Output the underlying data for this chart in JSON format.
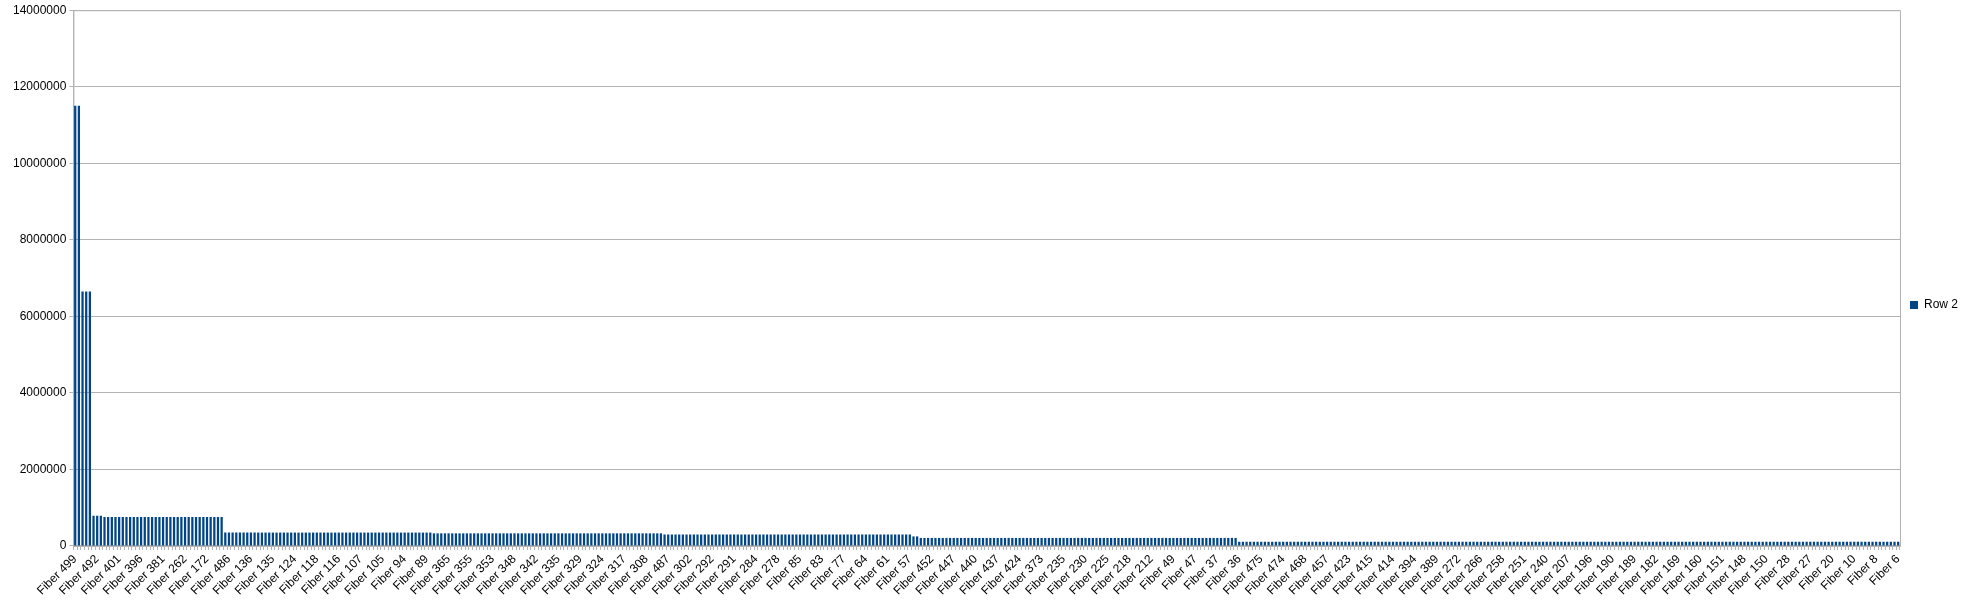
{
  "chart_data": {
    "type": "bar",
    "categories": [
      "Fiber 499",
      null,
      null,
      null,
      null,
      null,
      "Fiber 492",
      null,
      null,
      null,
      null,
      null,
      "Fiber 401",
      null,
      null,
      null,
      null,
      null,
      "Fiber 396",
      null,
      null,
      null,
      null,
      null,
      "Fiber 381",
      null,
      null,
      null,
      null,
      null,
      "Fiber 262",
      null,
      null,
      null,
      null,
      null,
      "Fiber 172",
      null,
      null,
      null,
      null,
      null,
      "Fiber 486",
      null,
      null,
      null,
      null,
      null,
      "Fiber 136",
      null,
      null,
      null,
      null,
      null,
      "Fiber 135",
      null,
      null,
      null,
      null,
      null,
      "Fiber 124",
      null,
      null,
      null,
      null,
      null,
      "Fiber 118",
      null,
      null,
      null,
      null,
      null,
      "Fiber 116",
      null,
      null,
      null,
      null,
      null,
      "Fiber 107",
      null,
      null,
      null,
      null,
      null,
      "Fiber 105",
      null,
      null,
      null,
      null,
      null,
      "Fiber 94",
      null,
      null,
      null,
      null,
      null,
      "Fiber 89",
      null,
      null,
      null,
      null,
      null,
      "Fiber 365",
      null,
      null,
      null,
      null,
      null,
      "Fiber 355",
      null,
      null,
      null,
      null,
      null,
      "Fiber 353",
      null,
      null,
      null,
      null,
      null,
      "Fiber 348",
      null,
      null,
      null,
      null,
      null,
      "Fiber 342",
      null,
      null,
      null,
      null,
      null,
      "Fiber 335",
      null,
      null,
      null,
      null,
      null,
      "Fiber 329",
      null,
      null,
      null,
      null,
      null,
      "Fiber 324",
      null,
      null,
      null,
      null,
      null,
      "Fiber 317",
      null,
      null,
      null,
      null,
      null,
      "Fiber 308",
      null,
      null,
      null,
      null,
      null,
      "Fiber 487",
      null,
      null,
      null,
      null,
      null,
      "Fiber 302",
      null,
      null,
      null,
      null,
      null,
      "Fiber 292",
      null,
      null,
      null,
      null,
      null,
      "Fiber 291",
      null,
      null,
      null,
      null,
      null,
      "Fiber 284",
      null,
      null,
      null,
      null,
      null,
      "Fiber 278",
      null,
      null,
      null,
      null,
      null,
      "Fiber 85",
      null,
      null,
      null,
      null,
      null,
      "Fiber 83",
      null,
      null,
      null,
      null,
      null,
      "Fiber 77",
      null,
      null,
      null,
      null,
      null,
      "Fiber 64",
      null,
      null,
      null,
      null,
      null,
      "Fiber 61",
      null,
      null,
      null,
      null,
      null,
      "Fiber 57",
      null,
      null,
      null,
      null,
      null,
      "Fiber 452",
      null,
      null,
      null,
      null,
      null,
      "Fiber 447",
      null,
      null,
      null,
      null,
      null,
      "Fiber 440",
      null,
      null,
      null,
      null,
      null,
      "Fiber 437",
      null,
      null,
      null,
      null,
      null,
      "Fiber 424",
      null,
      null,
      null,
      null,
      null,
      "Fiber 373",
      null,
      null,
      null,
      null,
      null,
      "Fiber 235",
      null,
      null,
      null,
      null,
      null,
      "Fiber 230",
      null,
      null,
      null,
      null,
      null,
      "Fiber 225",
      null,
      null,
      null,
      null,
      null,
      "Fiber 218",
      null,
      null,
      null,
      null,
      null,
      "Fiber 212",
      null,
      null,
      null,
      null,
      null,
      "Fiber 49",
      null,
      null,
      null,
      null,
      null,
      "Fiber 47",
      null,
      null,
      null,
      null,
      null,
      "Fiber 37",
      null,
      null,
      null,
      null,
      null,
      "Fiber 36",
      null,
      null,
      null,
      null,
      null,
      "Fiber 475",
      null,
      null,
      null,
      null,
      null,
      "Fiber 474",
      null,
      null,
      null,
      null,
      null,
      "Fiber 468",
      null,
      null,
      null,
      null,
      null,
      "Fiber 457",
      null,
      null,
      null,
      null,
      null,
      "Fiber 423",
      null,
      null,
      null,
      null,
      null,
      "Fiber 415",
      null,
      null,
      null,
      null,
      null,
      "Fiber 414",
      null,
      null,
      null,
      null,
      null,
      "Fiber 394",
      null,
      null,
      null,
      null,
      null,
      "Fiber 389",
      null,
      null,
      null,
      null,
      null,
      "Fiber 272",
      null,
      null,
      null,
      null,
      null,
      "Fiber 266",
      null,
      null,
      null,
      null,
      null,
      "Fiber 258",
      null,
      null,
      null,
      null,
      null,
      "Fiber 251",
      null,
      null,
      null,
      null,
      null,
      "Fiber 240",
      null,
      null,
      null,
      null,
      null,
      "Fiber 207",
      null,
      null,
      null,
      null,
      null,
      "Fiber 196",
      null,
      null,
      null,
      null,
      null,
      "Fiber 190",
      null,
      null,
      null,
      null,
      null,
      "Fiber 189",
      null,
      null,
      null,
      null,
      null,
      "Fiber 182",
      null,
      null,
      null,
      null,
      null,
      "Fiber 169",
      null,
      null,
      null,
      null,
      null,
      "Fiber 160",
      null,
      null,
      null,
      null,
      null,
      "Fiber 151",
      null,
      null,
      null,
      null,
      null,
      "Fiber 148",
      null,
      null,
      null,
      null,
      null,
      "Fiber 150",
      null,
      null,
      null,
      null,
      null,
      "Fiber 28",
      null,
      null,
      null,
      null,
      null,
      "Fiber 27",
      null,
      null,
      null,
      null,
      null,
      "Fiber 20",
      null,
      null,
      null,
      null,
      null,
      "Fiber 10",
      null,
      null,
      null,
      null,
      null,
      "Fiber 8",
      null,
      null,
      null,
      null,
      null,
      "Fiber 6"
    ],
    "series": [
      {
        "name": "Row 2",
        "color": "#004586",
        "values": [
          11500000,
          11500000,
          6650000,
          6650000,
          6650000,
          790000,
          790000,
          790000,
          760000,
          760000,
          760000,
          760000,
          760000,
          760000,
          760000,
          760000,
          760000,
          760000,
          760000,
          760000,
          760000,
          760000,
          760000,
          760000,
          760000,
          760000,
          760000,
          760000,
          760000,
          760000,
          760000,
          760000,
          760000,
          760000,
          760000,
          760000,
          760000,
          760000,
          760000,
          760000,
          760000,
          350000,
          350000,
          350000,
          350000,
          350000,
          350000,
          350000,
          350000,
          350000,
          350000,
          350000,
          350000,
          350000,
          350000,
          350000,
          350000,
          350000,
          350000,
          350000,
          350000,
          350000,
          350000,
          350000,
          350000,
          350000,
          350000,
          350000,
          350000,
          350000,
          350000,
          350000,
          350000,
          350000,
          350000,
          350000,
          350000,
          350000,
          350000,
          350000,
          350000,
          350000,
          350000,
          350000,
          350000,
          350000,
          350000,
          350000,
          350000,
          350000,
          350000,
          350000,
          350000,
          350000,
          350000,
          350000,
          350000,
          350000,
          330000,
          330000,
          330000,
          330000,
          330000,
          330000,
          330000,
          330000,
          330000,
          330000,
          330000,
          330000,
          330000,
          330000,
          330000,
          330000,
          330000,
          330000,
          330000,
          330000,
          330000,
          330000,
          330000,
          330000,
          330000,
          330000,
          330000,
          330000,
          330000,
          330000,
          330000,
          330000,
          330000,
          330000,
          330000,
          330000,
          330000,
          330000,
          330000,
          330000,
          330000,
          330000,
          330000,
          330000,
          330000,
          330000,
          330000,
          330000,
          330000,
          330000,
          330000,
          330000,
          330000,
          330000,
          330000,
          330000,
          330000,
          330000,
          330000,
          330000,
          330000,
          330000,
          330000,
          300000,
          300000,
          300000,
          300000,
          300000,
          300000,
          300000,
          300000,
          300000,
          300000,
          300000,
          300000,
          300000,
          300000,
          300000,
          300000,
          300000,
          300000,
          300000,
          300000,
          300000,
          300000,
          300000,
          300000,
          300000,
          300000,
          300000,
          300000,
          300000,
          300000,
          300000,
          300000,
          300000,
          300000,
          300000,
          300000,
          300000,
          300000,
          300000,
          300000,
          300000,
          300000,
          300000,
          300000,
          300000,
          300000,
          300000,
          300000,
          300000,
          300000,
          300000,
          300000,
          300000,
          300000,
          300000,
          300000,
          300000,
          300000,
          300000,
          300000,
          300000,
          300000,
          300000,
          300000,
          300000,
          300000,
          300000,
          300000,
          250000,
          250000,
          210000,
          210000,
          210000,
          210000,
          210000,
          210000,
          210000,
          210000,
          210000,
          210000,
          210000,
          210000,
          210000,
          210000,
          210000,
          210000,
          210000,
          210000,
          210000,
          210000,
          210000,
          210000,
          210000,
          210000,
          210000,
          210000,
          210000,
          210000,
          210000,
          210000,
          210000,
          210000,
          210000,
          210000,
          210000,
          210000,
          210000,
          210000,
          210000,
          210000,
          210000,
          210000,
          210000,
          210000,
          210000,
          210000,
          210000,
          210000,
          210000,
          210000,
          210000,
          210000,
          210000,
          210000,
          210000,
          210000,
          210000,
          210000,
          210000,
          210000,
          210000,
          210000,
          210000,
          210000,
          210000,
          210000,
          210000,
          210000,
          210000,
          210000,
          210000,
          210000,
          210000,
          210000,
          210000,
          210000,
          210000,
          210000,
          210000,
          210000,
          210000,
          210000,
          210000,
          210000,
          210000,
          210000,
          210000,
          110000,
          110000,
          110000,
          110000,
          110000,
          110000,
          110000,
          110000,
          110000,
          110000,
          110000,
          110000,
          110000,
          110000,
          110000,
          110000,
          110000,
          110000,
          110000,
          110000,
          110000,
          110000,
          110000,
          110000,
          110000,
          110000,
          110000,
          110000,
          110000,
          110000,
          110000,
          110000,
          110000,
          110000,
          110000,
          110000,
          110000,
          110000,
          110000,
          110000,
          110000,
          110000,
          110000,
          110000,
          110000,
          110000,
          110000,
          110000,
          110000,
          110000,
          110000,
          110000,
          110000,
          110000,
          110000,
          110000,
          110000,
          110000,
          110000,
          110000,
          110000,
          110000,
          110000,
          110000,
          110000,
          110000,
          110000,
          110000,
          110000,
          110000,
          110000,
          110000,
          110000,
          110000,
          110000,
          110000,
          110000,
          110000,
          110000,
          110000,
          110000,
          110000,
          110000,
          110000,
          110000,
          110000,
          110000,
          110000,
          110000,
          110000,
          110000,
          110000,
          110000,
          110000,
          110000,
          110000,
          110000,
          110000,
          110000,
          110000,
          110000,
          110000,
          110000,
          110000,
          110000,
          110000,
          110000,
          110000,
          110000,
          110000,
          110000,
          110000,
          110000,
          110000,
          110000,
          110000,
          110000,
          110000,
          110000,
          110000,
          110000,
          110000,
          110000,
          110000,
          110000,
          110000,
          110000,
          110000,
          110000,
          110000,
          110000,
          110000,
          110000,
          110000,
          110000,
          110000,
          110000,
          110000,
          110000,
          110000,
          110000,
          110000,
          110000,
          110000,
          110000,
          110000,
          110000,
          110000,
          110000,
          110000,
          110000,
          110000,
          110000,
          110000,
          110000,
          110000,
          110000,
          110000,
          110000,
          110000,
          110000,
          110000,
          110000,
          110000,
          110000,
          110000,
          110000,
          110000,
          110000,
          110000,
          110000,
          110000,
          110000,
          110000,
          110000,
          110000,
          110000,
          110000,
          110000,
          110000,
          110000
        ]
      }
    ],
    "ylim": [
      0,
      14000000
    ],
    "yticks": [
      0,
      2000000,
      4000000,
      6000000,
      8000000,
      10000000,
      12000000,
      14000000
    ],
    "grid": "y",
    "legend": "right"
  }
}
